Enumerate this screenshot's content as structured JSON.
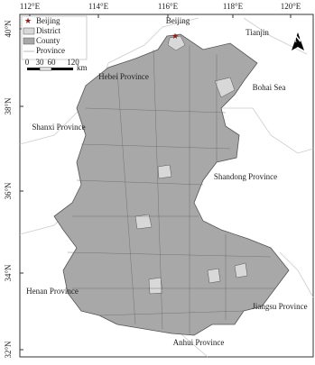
{
  "map": {
    "lon_ticks": [
      "112°E",
      "114°E",
      "116°E",
      "118°E",
      "120°E"
    ],
    "lat_ticks": [
      "40°N",
      "38°N",
      "36°N",
      "34°N",
      "32°N"
    ],
    "legend": [
      "Beijing",
      "District",
      "County",
      "Province"
    ],
    "scale_bar": {
      "labels": [
        "0",
        "30",
        "60",
        "120"
      ],
      "unit": "km"
    },
    "north": "N",
    "places": [
      "Beijing",
      "Tianjin",
      "Hebei Province",
      "Bohai Sea",
      "Shanxi Province",
      "Shandong Province",
      "Henan Province",
      "Jiangsu Province",
      "Anhui Province"
    ]
  }
}
